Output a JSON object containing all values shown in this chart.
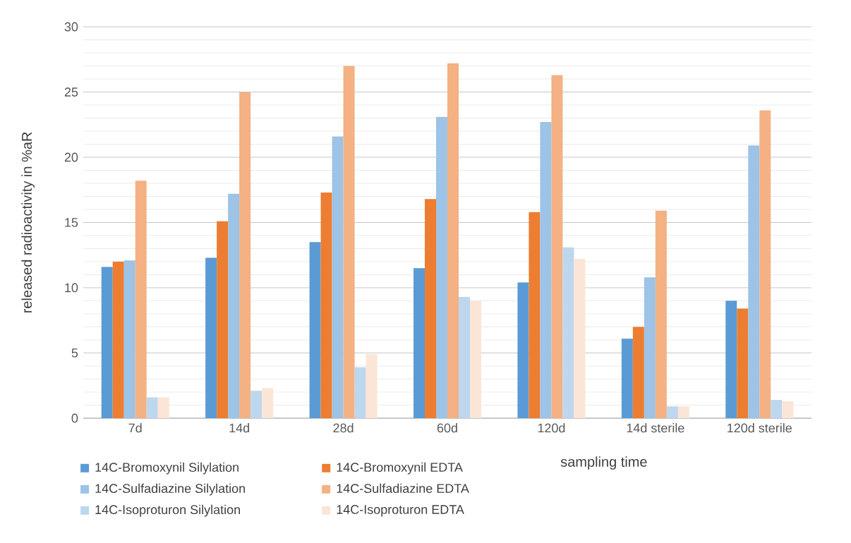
{
  "chart_data": {
    "type": "bar",
    "xlabel": "sampling time",
    "ylabel": "released radioactivity in %aR",
    "categories": [
      "7d",
      "14d",
      "28d",
      "60d",
      "120d",
      "14d sterile",
      "120d sterile"
    ],
    "series": [
      {
        "name": "14C-Bromoxynil Silylation",
        "color": "#5b9bd5",
        "values": [
          11.6,
          12.3,
          13.5,
          11.5,
          10.4,
          6.1,
          9.0
        ]
      },
      {
        "name": "14C-Bromoxynil EDTA",
        "color": "#ed7d31",
        "values": [
          12.0,
          15.1,
          17.3,
          16.8,
          15.8,
          7.0,
          8.4
        ]
      },
      {
        "name": "14C-Sulfadiazine Silylation",
        "color": "#9dc3e6",
        "values": [
          12.1,
          17.2,
          21.6,
          23.1,
          22.7,
          10.8,
          20.9
        ]
      },
      {
        "name": "14C-Sulfadiazine EDTA",
        "color": "#f4b183",
        "values": [
          18.2,
          25.0,
          27.0,
          27.2,
          26.3,
          15.9,
          23.6
        ]
      },
      {
        "name": "14C-Isoproturon Silylation",
        "color": "#bdd7ee",
        "values": [
          1.6,
          2.1,
          3.9,
          9.3,
          13.1,
          0.9,
          1.4
        ]
      },
      {
        "name": "14C-Isoproturon EDTA",
        "color": "#fbe5d6",
        "values": [
          1.6,
          2.3,
          4.9,
          9.0,
          12.2,
          0.9,
          1.3
        ]
      }
    ],
    "ylim": [
      0,
      30
    ],
    "yticks": [
      0,
      5,
      10,
      15,
      20,
      25,
      30
    ],
    "grid": "y",
    "legend": "bottom"
  }
}
